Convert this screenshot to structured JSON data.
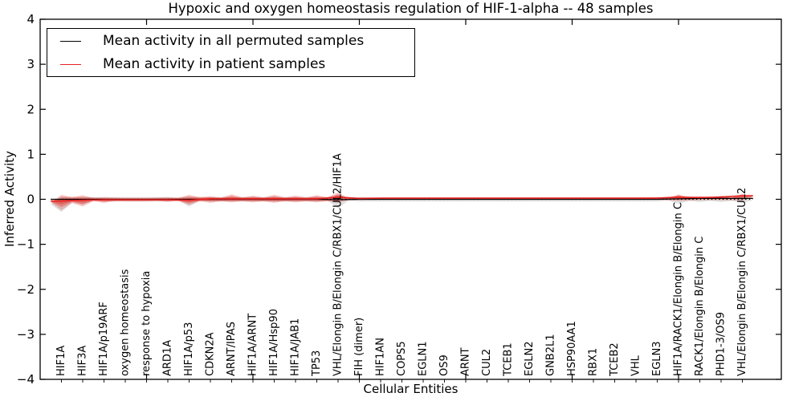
{
  "title": "Hypoxic and oxygen homeostasis regulation of HIF-1-alpha -- 48 samples",
  "legend": {
    "items": [
      {
        "label": "Mean activity in all permuted samples",
        "color": "#000000"
      },
      {
        "label": "Mean activity in patient samples",
        "color": "#e62222"
      }
    ]
  },
  "axes": {
    "ylabel": "Inferred Activity",
    "xlabel": "Cellular Entities",
    "yticks": [
      4,
      3,
      2,
      1,
      0,
      -1,
      -2,
      -3,
      -4
    ],
    "ylim": [
      -4,
      4
    ],
    "x_major_tick_positions": [
      5,
      10,
      15,
      20,
      25,
      30
    ]
  },
  "colors": {
    "patient_band": "#de2d26",
    "patient_line": "#e62222",
    "permuted_band": "#828282",
    "permuted_line": "#000000",
    "zero_line": "#000000",
    "frame": "#000000"
  },
  "chart_data": {
    "type": "area",
    "subtype": "violin-band",
    "title": "Hypoxic and oxygen homeostasis regulation of HIF-1-alpha -- 48 samples",
    "xlabel": "Cellular Entities",
    "ylabel": "Inferred Activity",
    "ylim": [
      -4,
      4
    ],
    "grid": false,
    "legend_position": "upper left",
    "categories": [
      "HIF1A",
      "HIF3A",
      "HIF1A/p19ARF",
      "oxygen homeostasis",
      "response to hypoxia",
      "ARD1A",
      "HIF1A/p53",
      "CDKN2A",
      "ARNT/IPAS",
      "HIF1A/ARNT",
      "HIF1A/Hsp90",
      "HIF1A/JAB1",
      "TP53",
      "VHL/Elongin B/Elongin C/RBX1/CUL2/HIF1A",
      "FIH (dimer)",
      "HIF1AN",
      "COPS5",
      "EGLN1",
      "OS9",
      "ARNT",
      "CUL2",
      "TCEB1",
      "EGLN2",
      "GNB2L1",
      "HSP90AA1",
      "RBX1",
      "TCEB2",
      "VHL",
      "EGLN3",
      "HIF1A/RACK1/Elongin B/Elongin C",
      "RACK1/Elongin B/Elongin C",
      "PHD1-3/OS9",
      "VHL/Elongin B/Elongin C/RBX1/CUL2"
    ],
    "series": [
      {
        "name": "Mean activity in all permuted samples",
        "color": "#000000",
        "values": [
          0,
          0,
          0,
          0,
          0,
          0,
          0,
          0,
          0,
          0,
          0,
          0,
          0,
          -0.01,
          0,
          0,
          0,
          0,
          0,
          0,
          0,
          0,
          0,
          0,
          0,
          0,
          0,
          0,
          0,
          0.01,
          0.02,
          0.02,
          0.02
        ]
      },
      {
        "name": "Mean activity in patient samples",
        "color": "#e62222",
        "values": [
          -0.04,
          -0.02,
          -0.01,
          -0.01,
          -0.01,
          -0.01,
          -0.02,
          0.01,
          0.01,
          0.01,
          0.01,
          0.01,
          0.01,
          0.05,
          0.02,
          0.025,
          0.025,
          0.025,
          0.025,
          0.025,
          0.025,
          0.025,
          0.025,
          0.025,
          0.025,
          0.025,
          0.025,
          0.025,
          0.025,
          0.05,
          0.04,
          0.05,
          0.08
        ]
      }
    ],
    "bands": {
      "patient": {
        "color": "#de2d26",
        "hi": [
          0.1,
          0.09,
          0.05,
          0.04,
          0.04,
          0.05,
          0.1,
          0.07,
          0.11,
          0.08,
          0.1,
          0.08,
          0.09,
          0.15,
          0.04,
          0.04,
          0.04,
          0.04,
          0.04,
          0.04,
          0.04,
          0.04,
          0.04,
          0.04,
          0.04,
          0.04,
          0.04,
          0.04,
          0.05,
          0.11,
          0.07,
          0.08,
          0.12
        ],
        "lo": [
          -0.24,
          -0.16,
          -0.08,
          -0.05,
          -0.05,
          -0.06,
          -0.13,
          -0.08,
          -0.07,
          -0.07,
          -0.08,
          -0.07,
          -0.07,
          -0.08,
          -0.02,
          -0.01,
          -0.01,
          -0.01,
          -0.01,
          -0.01,
          -0.01,
          -0.01,
          -0.01,
          -0.01,
          -0.01,
          -0.01,
          -0.01,
          -0.01,
          -0.01,
          -0.04,
          -0.02,
          -0.02,
          -0.03
        ]
      },
      "permuted": {
        "color": "#828282",
        "hi": [
          0.06,
          0.05,
          0.05,
          0.04,
          0.04,
          0.05,
          0.06,
          0.05,
          0.05,
          0.05,
          0.05,
          0.05,
          0.05,
          0.09,
          0.05,
          0.03,
          0.03,
          0.03,
          0.03,
          0.03,
          0.03,
          0.03,
          0.03,
          0.03,
          0.03,
          0.03,
          0.03,
          0.03,
          0.03,
          0.05,
          0.03,
          0.03,
          0.04
        ],
        "lo": [
          -0.28,
          -0.12,
          -0.05,
          -0.05,
          -0.05,
          -0.05,
          -0.16,
          -0.05,
          -0.05,
          -0.05,
          -0.05,
          -0.05,
          -0.05,
          -0.2,
          -0.05,
          -0.05,
          -0.05,
          -0.05,
          -0.05,
          -0.05,
          -0.05,
          -0.05,
          -0.05,
          -0.05,
          -0.05,
          -0.05,
          -0.05,
          -0.05,
          -0.05,
          -0.1,
          -0.06,
          -0.06,
          -0.08
        ]
      }
    },
    "zero_line": true
  }
}
